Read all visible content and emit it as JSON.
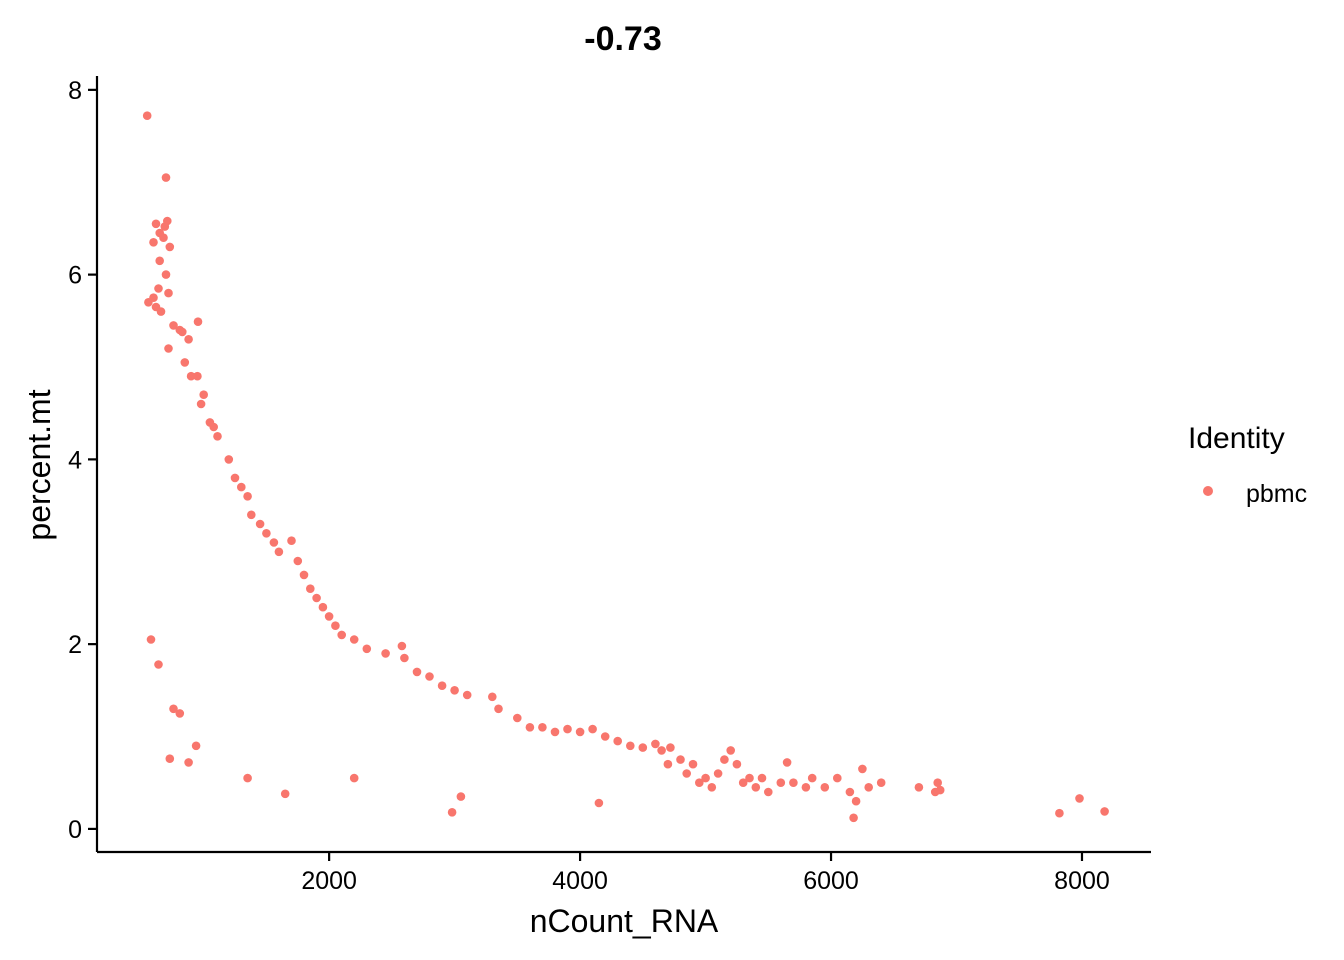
{
  "chart_data": {
    "type": "scatter",
    "title": "-0.73",
    "xlabel": "nCount_RNA",
    "ylabel": "percent.mt",
    "xlim": [
      150,
      8550
    ],
    "ylim": [
      -0.25,
      8.15
    ],
    "x_ticks": [
      2000,
      4000,
      6000,
      8000
    ],
    "y_ticks": [
      0,
      2,
      4,
      6,
      8
    ],
    "x_tick_labels": [
      "2000",
      "4000",
      "6000",
      "8000"
    ],
    "y_tick_labels": [
      "0",
      "2",
      "4",
      "6",
      "8"
    ],
    "grid": false,
    "legend": {
      "title": "Identity",
      "position": "right",
      "entries": [
        {
          "label": "pbmc",
          "color": "#F8766D"
        }
      ]
    },
    "series": [
      {
        "name": "pbmc",
        "color": "#F8766D",
        "points": [
          [
            550,
            7.72
          ],
          [
            700,
            7.05
          ],
          [
            710,
            6.58
          ],
          [
            690,
            6.52
          ],
          [
            620,
            6.55
          ],
          [
            650,
            6.45
          ],
          [
            600,
            6.35
          ],
          [
            680,
            6.4
          ],
          [
            730,
            6.3
          ],
          [
            650,
            6.15
          ],
          [
            700,
            6.0
          ],
          [
            640,
            5.85
          ],
          [
            720,
            5.8
          ],
          [
            600,
            5.75
          ],
          [
            560,
            5.7
          ],
          [
            620,
            5.65
          ],
          [
            660,
            5.6
          ],
          [
            760,
            5.45
          ],
          [
            810,
            5.4
          ],
          [
            830,
            5.38
          ],
          [
            880,
            5.3
          ],
          [
            955,
            5.49
          ],
          [
            720,
            5.2
          ],
          [
            850,
            5.05
          ],
          [
            900,
            4.9
          ],
          [
            950,
            4.9
          ],
          [
            1000,
            4.7
          ],
          [
            980,
            4.6
          ],
          [
            1050,
            4.4
          ],
          [
            1080,
            4.35
          ],
          [
            1110,
            4.25
          ],
          [
            1200,
            4.0
          ],
          [
            1250,
            3.8
          ],
          [
            1300,
            3.7
          ],
          [
            1350,
            3.6
          ],
          [
            1380,
            3.4
          ],
          [
            1450,
            3.3
          ],
          [
            1500,
            3.2
          ],
          [
            1560,
            3.1
          ],
          [
            1600,
            3.0
          ],
          [
            1700,
            3.12
          ],
          [
            1750,
            2.9
          ],
          [
            1800,
            2.75
          ],
          [
            1850,
            2.6
          ],
          [
            1900,
            2.5
          ],
          [
            1950,
            2.4
          ],
          [
            2000,
            2.3
          ],
          [
            2050,
            2.2
          ],
          [
            2100,
            2.1
          ],
          [
            2200,
            2.05
          ],
          [
            2300,
            1.95
          ],
          [
            2450,
            1.9
          ],
          [
            2580,
            1.98
          ],
          [
            2600,
            1.85
          ],
          [
            2700,
            1.7
          ],
          [
            2800,
            1.65
          ],
          [
            2900,
            1.55
          ],
          [
            3000,
            1.5
          ],
          [
            3100,
            1.45
          ],
          [
            3300,
            1.43
          ],
          [
            3350,
            1.3
          ],
          [
            3500,
            1.2
          ],
          [
            3600,
            1.1
          ],
          [
            3700,
            1.1
          ],
          [
            3800,
            1.05
          ],
          [
            3900,
            1.08
          ],
          [
            4000,
            1.05
          ],
          [
            4100,
            1.08
          ],
          [
            4200,
            1.0
          ],
          [
            4300,
            0.95
          ],
          [
            4400,
            0.9
          ],
          [
            4500,
            0.88
          ],
          [
            4600,
            0.92
          ],
          [
            4650,
            0.85
          ],
          [
            4700,
            0.7
          ],
          [
            4720,
            0.88
          ],
          [
            4800,
            0.75
          ],
          [
            4850,
            0.6
          ],
          [
            4900,
            0.7
          ],
          [
            4950,
            0.5
          ],
          [
            5000,
            0.55
          ],
          [
            5050,
            0.45
          ],
          [
            5100,
            0.6
          ],
          [
            5150,
            0.75
          ],
          [
            5200,
            0.85
          ],
          [
            5250,
            0.7
          ],
          [
            5300,
            0.5
          ],
          [
            5350,
            0.55
          ],
          [
            5400,
            0.45
          ],
          [
            5450,
            0.55
          ],
          [
            5500,
            0.4
          ],
          [
            5600,
            0.5
          ],
          [
            5650,
            0.72
          ],
          [
            5700,
            0.5
          ],
          [
            5800,
            0.45
          ],
          [
            5850,
            0.55
          ],
          [
            5950,
            0.45
          ],
          [
            6050,
            0.55
          ],
          [
            6150,
            0.4
          ],
          [
            6180,
            0.12
          ],
          [
            6200,
            0.3
          ],
          [
            6250,
            0.65
          ],
          [
            6300,
            0.45
          ],
          [
            6400,
            0.5
          ],
          [
            6700,
            0.45
          ],
          [
            6830,
            0.4
          ],
          [
            6850,
            0.5
          ],
          [
            6870,
            0.42
          ],
          [
            7820,
            0.17
          ],
          [
            7980,
            0.33
          ],
          [
            8180,
            0.19
          ],
          [
            2980,
            0.18
          ],
          [
            4150,
            0.28
          ],
          [
            3050,
            0.35
          ],
          [
            2200,
            0.55
          ],
          [
            1650,
            0.38
          ],
          [
            1350,
            0.55
          ],
          [
            940,
            0.9
          ],
          [
            880,
            0.72
          ],
          [
            730,
            0.76
          ],
          [
            640,
            1.78
          ],
          [
            580,
            2.05
          ],
          [
            760,
            1.3
          ],
          [
            810,
            1.25
          ]
        ]
      }
    ]
  }
}
